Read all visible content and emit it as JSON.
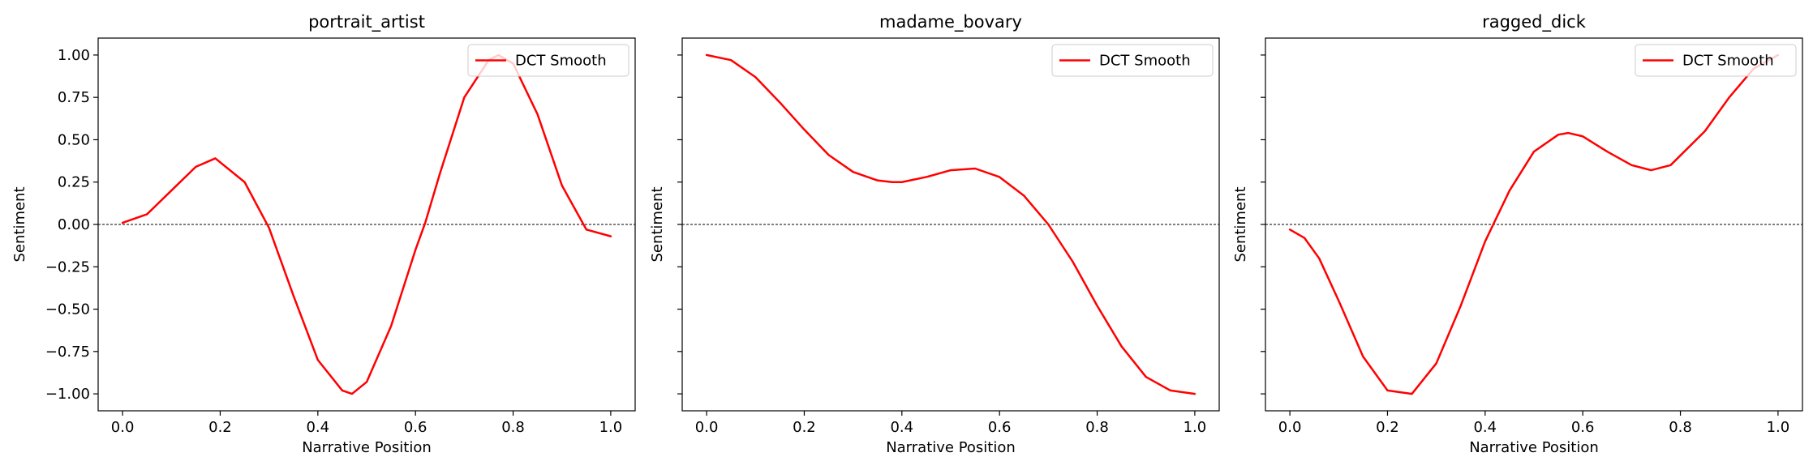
{
  "chart_data": [
    {
      "type": "line",
      "title": "portrait_artist",
      "xlabel": "Narrative Position",
      "ylabel": "Sentiment",
      "xlim": [
        -0.05,
        1.05
      ],
      "ylim": [
        -1.1,
        1.1
      ],
      "xticks": [
        0.0,
        0.2,
        0.4,
        0.6,
        0.8,
        1.0
      ],
      "xtick_labels": [
        "0.0",
        "0.2",
        "0.4",
        "0.6",
        "0.8",
        "1.0"
      ],
      "yticks": [
        -1.0,
        -0.75,
        -0.5,
        -0.25,
        0.0,
        0.25,
        0.5,
        0.75,
        1.0
      ],
      "ytick_labels": [
        "−1.00",
        "−0.75",
        "−0.50",
        "−0.25",
        "0.00",
        "0.25",
        "0.50",
        "0.75",
        "1.00"
      ],
      "show_ytick_labels": true,
      "grid": false,
      "legend_position": "upper-right",
      "reference_line": 0.0,
      "series": [
        {
          "name": "DCT Smooth",
          "color": "#ff0000",
          "x": [
            0.0,
            0.05,
            0.1,
            0.15,
            0.19,
            0.25,
            0.3,
            0.35,
            0.4,
            0.45,
            0.47,
            0.5,
            0.55,
            0.6,
            0.62,
            0.65,
            0.7,
            0.75,
            0.77,
            0.8,
            0.85,
            0.9,
            0.95,
            1.0
          ],
          "values": [
            0.01,
            0.06,
            0.2,
            0.34,
            0.39,
            0.25,
            -0.02,
            -0.42,
            -0.8,
            -0.98,
            -1.0,
            -0.93,
            -0.6,
            -0.15,
            0.01,
            0.3,
            0.75,
            0.97,
            1.0,
            0.95,
            0.65,
            0.23,
            -0.03,
            -0.07
          ]
        }
      ]
    },
    {
      "type": "line",
      "title": "madame_bovary",
      "xlabel": "Narrative Position",
      "ylabel": "Sentiment",
      "xlim": [
        -0.05,
        1.05
      ],
      "ylim": [
        -1.1,
        1.1
      ],
      "xticks": [
        0.0,
        0.2,
        0.4,
        0.6,
        0.8,
        1.0
      ],
      "xtick_labels": [
        "0.0",
        "0.2",
        "0.4",
        "0.6",
        "0.8",
        "1.0"
      ],
      "yticks": [
        -1.0,
        -0.75,
        -0.5,
        -0.25,
        0.0,
        0.25,
        0.5,
        0.75,
        1.0
      ],
      "show_ytick_labels": false,
      "grid": false,
      "legend_position": "upper-right",
      "reference_line": 0.0,
      "series": [
        {
          "name": "DCT Smooth",
          "color": "#ff0000",
          "x": [
            0.0,
            0.05,
            0.1,
            0.15,
            0.2,
            0.25,
            0.3,
            0.35,
            0.38,
            0.4,
            0.45,
            0.5,
            0.55,
            0.6,
            0.65,
            0.7,
            0.75,
            0.8,
            0.85,
            0.9,
            0.95,
            1.0
          ],
          "values": [
            1.0,
            0.97,
            0.87,
            0.72,
            0.56,
            0.41,
            0.31,
            0.26,
            0.25,
            0.25,
            0.28,
            0.32,
            0.33,
            0.28,
            0.17,
            0.0,
            -0.22,
            -0.48,
            -0.72,
            -0.9,
            -0.98,
            -1.0
          ]
        }
      ]
    },
    {
      "type": "line",
      "title": "ragged_dick",
      "xlabel": "Narrative Position",
      "ylabel": "Sentiment",
      "xlim": [
        -0.05,
        1.05
      ],
      "ylim": [
        -1.1,
        1.1
      ],
      "xticks": [
        0.0,
        0.2,
        0.4,
        0.6,
        0.8,
        1.0
      ],
      "xtick_labels": [
        "0.0",
        "0.2",
        "0.4",
        "0.6",
        "0.8",
        "1.0"
      ],
      "yticks": [
        -1.0,
        -0.75,
        -0.5,
        -0.25,
        0.0,
        0.25,
        0.5,
        0.75,
        1.0
      ],
      "show_ytick_labels": false,
      "grid": false,
      "legend_position": "upper-right",
      "reference_line": 0.0,
      "series": [
        {
          "name": "DCT Smooth",
          "color": "#ff0000",
          "x": [
            0.0,
            0.03,
            0.06,
            0.1,
            0.15,
            0.2,
            0.25,
            0.3,
            0.35,
            0.4,
            0.45,
            0.5,
            0.55,
            0.57,
            0.6,
            0.65,
            0.7,
            0.74,
            0.78,
            0.85,
            0.9,
            0.95,
            1.0
          ],
          "values": [
            -0.03,
            -0.08,
            -0.2,
            -0.45,
            -0.78,
            -0.98,
            -1.0,
            -0.82,
            -0.48,
            -0.1,
            0.2,
            0.43,
            0.53,
            0.54,
            0.52,
            0.43,
            0.35,
            0.32,
            0.35,
            0.55,
            0.75,
            0.92,
            1.0
          ]
        }
      ]
    }
  ]
}
